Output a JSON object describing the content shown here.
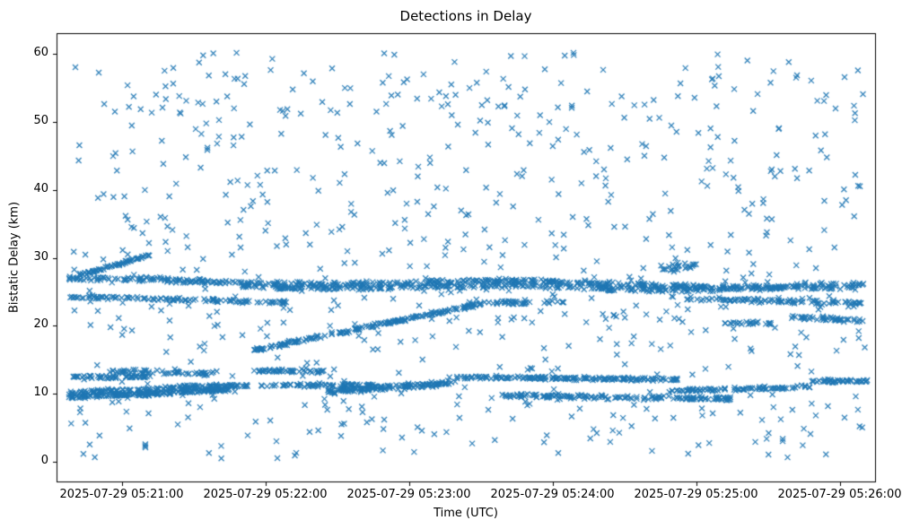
{
  "chart_data": {
    "type": "scatter",
    "title": "Detections in Delay",
    "xlabel": "Time (UTC)",
    "ylabel": "Bistatic Delay (km)",
    "marker": "x",
    "marker_color": "#1f77b4",
    "grid": false,
    "legend": "none",
    "x_unit": "seconds since 2025-07-29 05:21:00 UTC",
    "xlim": [
      -27,
      315
    ],
    "ylim": [
      -3,
      63
    ],
    "x_ticks": [
      0,
      60,
      120,
      180,
      240,
      300
    ],
    "x_tick_labels": [
      "2025-07-29 05:21:00",
      "2025-07-29 05:22:00",
      "2025-07-29 05:23:00",
      "2025-07-29 05:24:00",
      "2025-07-29 05:25:00",
      "2025-07-29 05:26:00"
    ],
    "y_ticks": [
      0,
      10,
      20,
      30,
      40,
      50,
      60
    ],
    "seed": 7,
    "tracks": [
      {
        "t0": -22,
        "t1": 310,
        "y0": 26.6,
        "y1": 25.9,
        "n": 450,
        "jitter": 0.16,
        "wiggle_amp": 0.35,
        "wiggle_period": 170,
        "wiggle_phase": 1.0
      },
      {
        "t0": 50,
        "t1": 310,
        "y0": 25.8,
        "y1": 25.4,
        "n": 300,
        "jitter": 0.16,
        "wiggle_amp": 0.25,
        "wiggle_period": 140,
        "wiggle_phase": 3.0
      },
      {
        "t0": -22,
        "t1": 70,
        "y0": 24.3,
        "y1": 23.4,
        "n": 110,
        "jitter": 0.12
      },
      {
        "t0": 55,
        "t1": 150,
        "y0": 16.4,
        "y1": 23.2,
        "n": 180,
        "jitter": 0.12
      },
      {
        "t0": -18,
        "t1": 12,
        "y0": 27.4,
        "y1": 30.4,
        "n": 60,
        "jitter": 0.1
      },
      {
        "t0": 150,
        "t1": 185,
        "y0": 23.3,
        "y1": 23.6,
        "n": 40,
        "jitter": 0.15
      },
      {
        "t0": 225,
        "t1": 240,
        "y0": 28.3,
        "y1": 29.0,
        "n": 25,
        "jitter": 0.25
      },
      {
        "t0": 235,
        "t1": 310,
        "y0": 24.0,
        "y1": 23.3,
        "n": 90,
        "jitter": 0.15
      },
      {
        "t0": 252,
        "t1": 272,
        "y0": 20.4,
        "y1": 20.4,
        "n": 25,
        "jitter": 0.12
      },
      {
        "t0": 280,
        "t1": 310,
        "y0": 21.3,
        "y1": 20.6,
        "n": 45,
        "jitter": 0.15
      },
      {
        "t0": -22,
        "t1": 45,
        "y0": 9.5,
        "y1": 10.6,
        "n": 170,
        "jitter": 0.15
      },
      {
        "t0": -22,
        "t1": 45,
        "y0": 10.1,
        "y1": 11.2,
        "n": 120,
        "jitter": 0.15
      },
      {
        "t0": -22,
        "t1": 12,
        "y0": 12.4,
        "y1": 12.5,
        "n": 50,
        "jitter": 0.12
      },
      {
        "t0": -5,
        "t1": 40,
        "y0": 13.3,
        "y1": 12.9,
        "n": 60,
        "jitter": 0.15
      },
      {
        "t0": 30,
        "t1": 105,
        "y0": 11.1,
        "y1": 11.3,
        "n": 90,
        "jitter": 0.12
      },
      {
        "t0": 55,
        "t1": 85,
        "y0": 13.4,
        "y1": 13.3,
        "n": 45,
        "jitter": 0.1
      },
      {
        "t0": 85,
        "t1": 140,
        "y0": 10.3,
        "y1": 11.6,
        "n": 140,
        "jitter": 0.2
      },
      {
        "t0": 140,
        "t1": 235,
        "y0": 12.4,
        "y1": 12.1,
        "n": 160,
        "jitter": 0.12
      },
      {
        "t0": 160,
        "t1": 255,
        "y0": 9.7,
        "y1": 9.2,
        "n": 150,
        "jitter": 0.15
      },
      {
        "t0": 228,
        "t1": 288,
        "y0": 10.4,
        "y1": 11.0,
        "n": 90,
        "jitter": 0.12
      },
      {
        "t0": 288,
        "t1": 312,
        "y0": 11.9,
        "y1": 11.8,
        "n": 45,
        "jitter": 0.12
      }
    ],
    "noise": {
      "n": 780,
      "t0": -22,
      "t1": 311,
      "y_min": 0.4,
      "y_max": 60.2
    }
  }
}
